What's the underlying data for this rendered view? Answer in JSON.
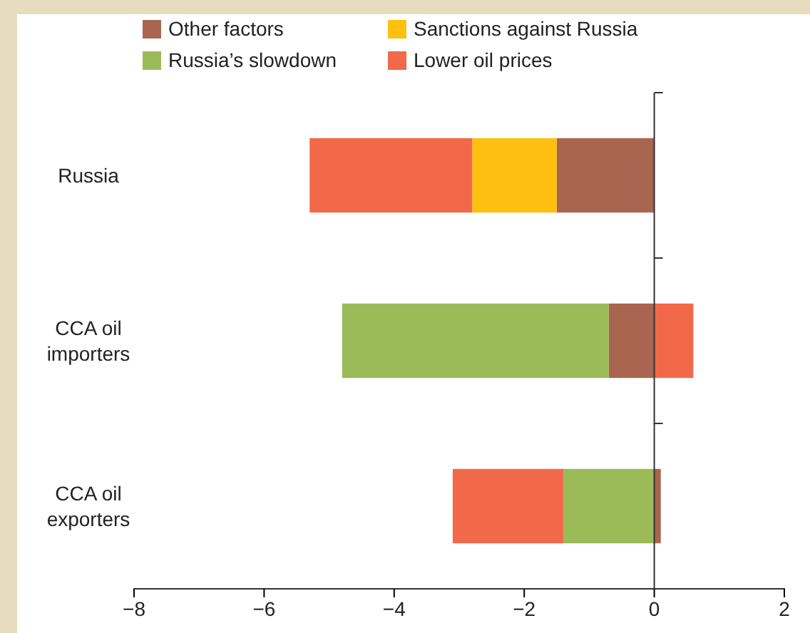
{
  "chart_data": {
    "type": "bar",
    "orientation": "horizontal",
    "stacked": true,
    "categories": [
      "Russia",
      "CCA oil\nimporters",
      "CCA oil\nexporters"
    ],
    "series": [
      {
        "name": "Other factors",
        "color": "#a9654f",
        "values": [
          -1.5,
          -0.7,
          0.1
        ]
      },
      {
        "name": "Sanctions against Russia",
        "color": "#fdc010",
        "values": [
          -1.3,
          null,
          null
        ]
      },
      {
        "name": "Russia’s slowdown",
        "color": "#9bbb59",
        "values": [
          null,
          -4.1,
          -1.4
        ]
      },
      {
        "name": "Lower oil prices",
        "color": "#f2694a",
        "values": [
          -2.5,
          0.6,
          -1.7
        ]
      }
    ],
    "xlim": [
      -8,
      2
    ],
    "xticks": [
      -8,
      -6,
      -4,
      -2,
      0,
      2
    ],
    "legend": "top",
    "ref_lines": [
      {
        "axis": "x",
        "value": 0,
        "color": "#333333"
      }
    ]
  }
}
